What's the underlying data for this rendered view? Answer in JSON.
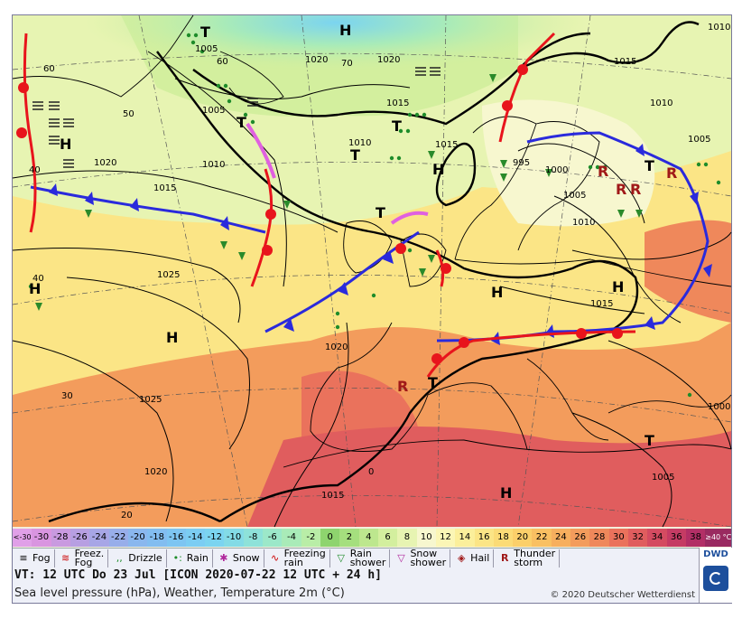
{
  "scale": {
    "low_label": "<-30",
    "high_label": "≥40 °C",
    "values": [
      "-30",
      "-28",
      "-26",
      "-24",
      "-22",
      "-20",
      "-18",
      "-16",
      "-14",
      "-12",
      "-10",
      "-8",
      "-6",
      "-4",
      "-2",
      "0",
      "2",
      "4",
      "6",
      "8",
      "10",
      "12",
      "14",
      "16",
      "18",
      "20",
      "22",
      "24",
      "26",
      "28",
      "30",
      "32",
      "34",
      "36",
      "38"
    ],
    "colors": [
      "#d995e0",
      "#c99ae0",
      "#b79fe2",
      "#a7a6e6",
      "#98aeea",
      "#8ab7ee",
      "#82bdf0",
      "#7dc5f2",
      "#7bcdf3",
      "#7bd4f0",
      "#83dbe6",
      "#8ee2d9",
      "#9ce8c9",
      "#a9ebb8",
      "#b9eda7",
      "#8ed46e",
      "#a5df7e",
      "#bde78e",
      "#d3ef9e",
      "#e7f4b2",
      "#f7f7cf",
      "#fbf6b6",
      "#fbef9b",
      "#fbe586",
      "#fbdb76",
      "#fbcf6a",
      "#f9c062",
      "#f7af5e",
      "#f39c5c",
      "#ef885b",
      "#ea725c",
      "#e05d5e",
      "#d44b61",
      "#c53b64",
      "#b22f66"
    ],
    "low_color": "#e0a0e8",
    "high_color": "#9a2a60"
  },
  "legend": [
    {
      "icon": "fog-icon",
      "label": "Fog"
    },
    {
      "icon": "freezing-fog-icon",
      "label": "Freez.\nFog"
    },
    {
      "icon": "drizzle-icon",
      "label": "Drizzle"
    },
    {
      "icon": "rain-icon",
      "label": "Rain"
    },
    {
      "icon": "snow-icon",
      "label": "Snow"
    },
    {
      "icon": "freezing-rain-icon",
      "label": "Freezing\nrain"
    },
    {
      "icon": "rain-shower-icon",
      "label": "Rain\nshower"
    },
    {
      "icon": "snow-shower-icon",
      "label": "Snow\nshower"
    },
    {
      "icon": "hail-icon",
      "label": "Hail"
    },
    {
      "icon": "thunderstorm-icon",
      "label": "Thunder\nstorm"
    }
  ],
  "info": {
    "valid_time": "VT: 12 UTC Do  23 Jul [ICON 2020-07-22  12 UTC + 24 h]",
    "description": "Sea level pressure (hPa), Weather, Temperature 2m (°C)",
    "copyright": "© 2020 Deutscher Wetterdienst",
    "logo": "DWD"
  },
  "map": {
    "pressure_centers": [
      {
        "type": "H",
        "label": "H"
      },
      {
        "type": "H",
        "label": "H"
      },
      {
        "type": "H",
        "label": "H"
      },
      {
        "type": "H",
        "label": "H"
      },
      {
        "type": "H",
        "label": "H"
      },
      {
        "type": "H",
        "label": "H"
      },
      {
        "type": "H",
        "label": "H"
      },
      {
        "type": "H",
        "label": "H"
      },
      {
        "type": "T",
        "label": "T"
      },
      {
        "type": "T",
        "label": "T"
      },
      {
        "type": "T",
        "label": "T"
      },
      {
        "type": "T",
        "label": "T"
      },
      {
        "type": "T",
        "label": "T"
      },
      {
        "type": "T",
        "label": "T"
      },
      {
        "type": "T",
        "label": "T"
      },
      {
        "type": "T",
        "label": "T"
      }
    ],
    "isobar_labels": [
      "1005",
      "1020",
      "1020",
      "1015",
      "1010",
      "1015",
      "1020",
      "1005",
      "1010",
      "1015",
      "1015",
      "1025",
      "1025",
      "1020",
      "1015",
      "1010",
      "995",
      "1000",
      "1005",
      "1010",
      "1005",
      "1015",
      "1000",
      "1005",
      "1010",
      "1020"
    ],
    "latitude_labels": [
      "60",
      "50",
      "40",
      "40",
      "30",
      "20",
      "0",
      "70",
      "60"
    ]
  }
}
